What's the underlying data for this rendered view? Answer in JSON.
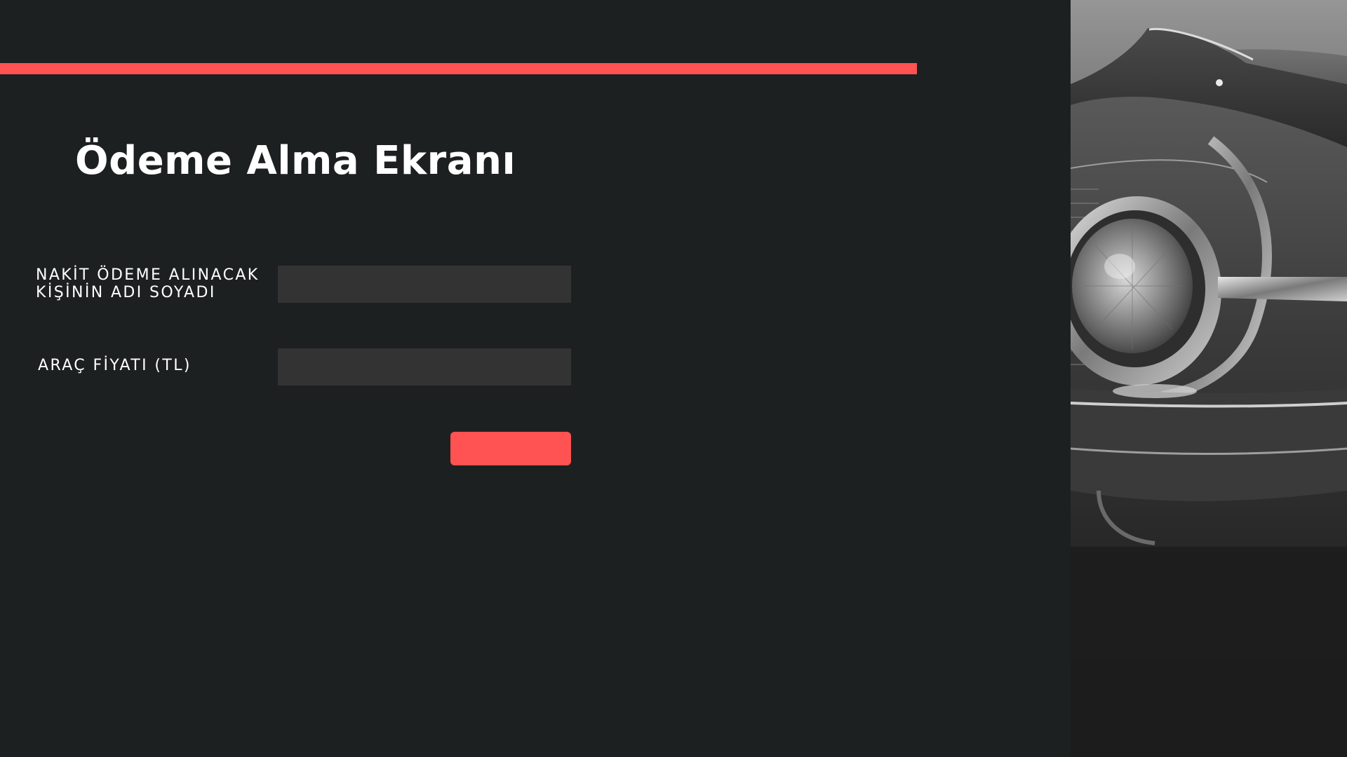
{
  "page": {
    "title": "Ödeme Alma Ekranı",
    "accent_color": "#ff5252",
    "background_color": "#1d2020"
  },
  "form": {
    "name_field": {
      "label_line1": "NAKİT ÖDEME ALINACAK",
      "label_line2": "KİŞİNİN ADI SOYADI",
      "value": ""
    },
    "price_field": {
      "label": "ARAÇ FİYATI (TL)",
      "value": ""
    },
    "submit_button": {
      "label": ""
    }
  },
  "side_image": {
    "subject": "classic-car-headlight",
    "style": "grayscale"
  }
}
